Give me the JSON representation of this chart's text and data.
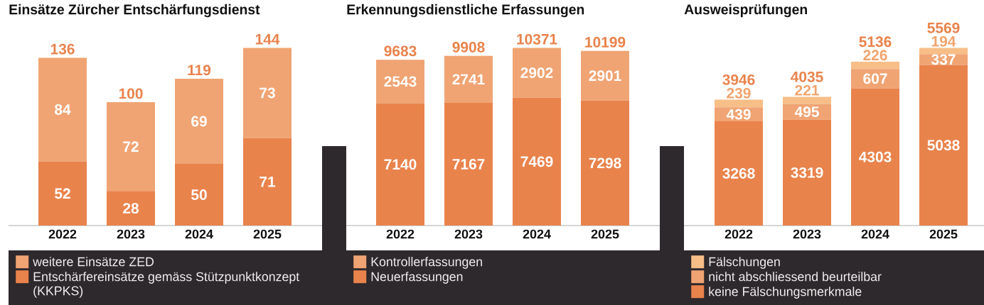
{
  "chart_data": [
    {
      "type": "bar",
      "title": "Einsätze Zürcher Entschärfungsdienst",
      "categories": [
        "2022",
        "2023",
        "2024",
        "2025"
      ],
      "stacked": true,
      "data_labels": true,
      "legend": "bottom",
      "series": [
        {
          "name": "Entschärfereinsätze gemäss Stützpunktkonzept (KKPKS)",
          "color": "#e9834c",
          "values": [
            52,
            28,
            50,
            71
          ]
        },
        {
          "name": "weitere Einsätze ZED",
          "color": "#f0a473",
          "values": [
            84,
            72,
            69,
            73
          ]
        }
      ],
      "totals": [
        "136",
        "100",
        "119",
        "144"
      ]
    },
    {
      "type": "bar",
      "title": "Erkennungsdienstliche Erfassungen",
      "categories": [
        "2022",
        "2023",
        "2024",
        "2025"
      ],
      "stacked": true,
      "data_labels": true,
      "legend": "bottom",
      "series": [
        {
          "name": "Neuerfassungen",
          "color": "#e9834c",
          "values": [
            7140,
            7167,
            7469,
            7298
          ]
        },
        {
          "name": "Kontrollerfassungen",
          "color": "#f0a473",
          "values": [
            2543,
            2741,
            2902,
            2901
          ]
        }
      ],
      "totals": [
        "9683",
        "9908",
        "10371",
        "10199"
      ]
    },
    {
      "type": "bar",
      "title": "Ausweisprüfungen",
      "categories": [
        "2022",
        "2023",
        "2024",
        "2025"
      ],
      "stacked": true,
      "data_labels": true,
      "legend": "bottom",
      "series": [
        {
          "name": "keine Fälschungsmerkmale",
          "color": "#e9834c",
          "values": [
            3268,
            3319,
            4303,
            5038
          ]
        },
        {
          "name": "nicht abschliessend beurteilbar",
          "color": "#f0a473",
          "values": [
            439,
            495,
            607,
            337
          ]
        },
        {
          "name": "Fälschungen",
          "color": "#f7be88",
          "values": [
            239,
            221,
            226,
            194
          ]
        }
      ],
      "totals": [
        "3946",
        "4035",
        "5136",
        "5569"
      ]
    }
  ]
}
